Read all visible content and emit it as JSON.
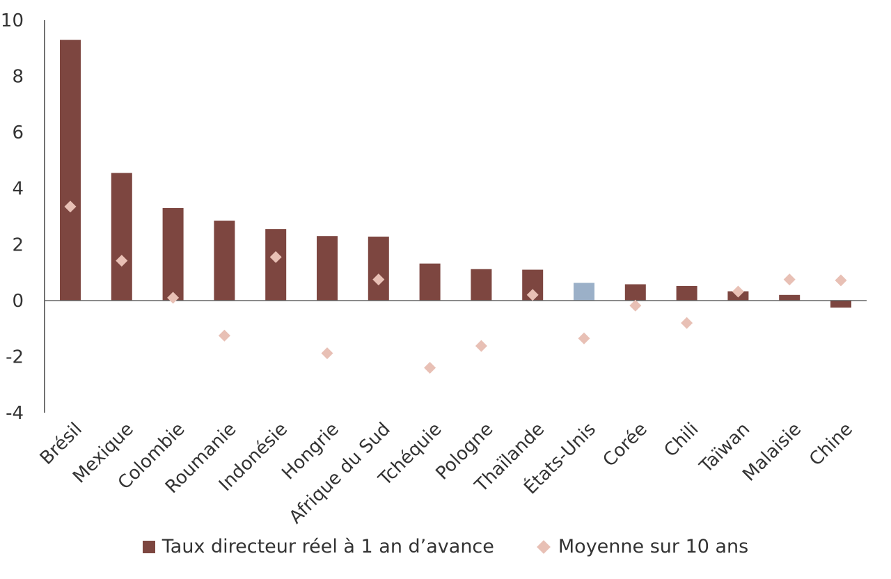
{
  "chart_data": {
    "type": "bar",
    "title": "",
    "xlabel": "",
    "ylabel": "",
    "ylim": [
      -4,
      10
    ],
    "yticks": [
      10,
      8,
      6,
      4,
      2,
      0,
      -2,
      -4
    ],
    "categories": [
      "Brésil",
      "Mexique",
      "Colombie",
      "Roumanie",
      "Indonésie",
      "Hongrie",
      "Afrique du Sud",
      "Tchéquie",
      "Pologne",
      "Thaïlande",
      "États-Unis",
      "Corée",
      "Chili",
      "Taïwan",
      "Malaisie",
      "Chine"
    ],
    "series": [
      {
        "name": "Taux directeur réel à 1 an d’avance",
        "kind": "bar",
        "color": "#7d4640",
        "highlight": {
          "category": "États-Unis",
          "color": "#9bb0c8"
        },
        "values": [
          9.3,
          4.55,
          3.3,
          2.85,
          2.55,
          2.3,
          2.28,
          1.32,
          1.12,
          1.1,
          0.63,
          0.58,
          0.52,
          0.33,
          0.2,
          -0.25
        ]
      },
      {
        "name": "Moyenne sur 10 ans",
        "kind": "marker",
        "marker": "diamond",
        "color": "#e8c0b5",
        "values": [
          3.35,
          1.42,
          0.1,
          -1.25,
          1.55,
          -1.88,
          0.75,
          -2.4,
          -1.62,
          0.2,
          -1.35,
          -0.18,
          -0.8,
          0.32,
          0.75,
          0.72
        ]
      }
    ],
    "legend_position": "bottom",
    "grid": false
  }
}
